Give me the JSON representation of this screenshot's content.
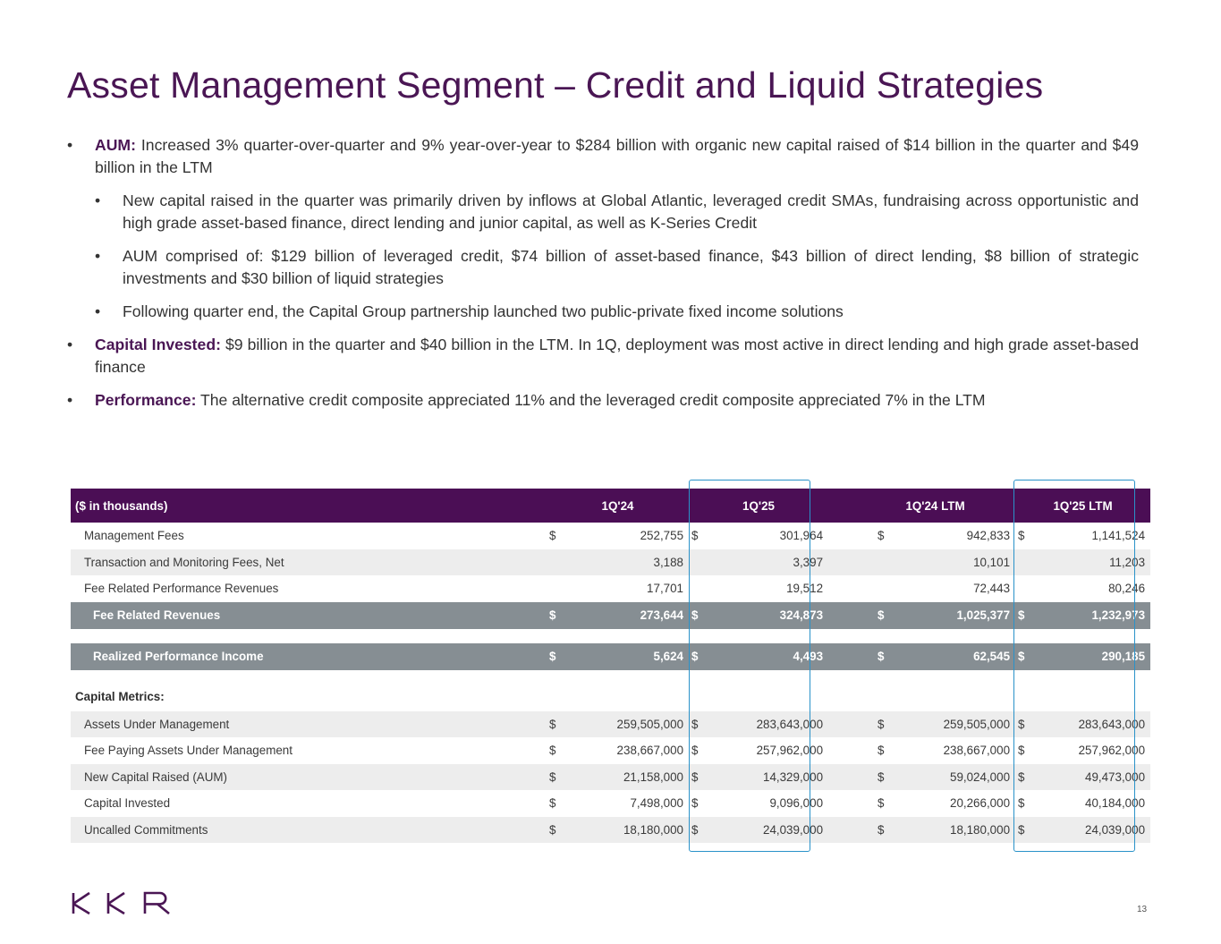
{
  "title": "Asset Management Segment – Credit and Liquid Strategies",
  "bullets": {
    "aum": {
      "lead": "AUM:",
      "text": " Increased 3% quarter-over-quarter and 9% year-over-year to $284 billion with organic new capital raised of $14 billion in the quarter and $49 billion in the LTM",
      "sub": [
        "New capital raised in the quarter was primarily driven by inflows at Global Atlantic, leveraged credit SMAs, fundraising across opportunistic and high grade asset-based finance, direct lending and junior capital, as well as K-Series Credit",
        "AUM comprised of: $129 billion of leveraged credit, $74 billion of asset-based finance, $43 billion of direct lending, $8 billion of strategic investments and $30 billion of liquid strategies",
        "Following quarter end, the Capital Group partnership launched two public-private fixed income solutions"
      ]
    },
    "capital": {
      "lead": "Capital Invested:",
      "text": " $9 billion in the quarter and $40 billion in the LTM. In 1Q, deployment was most active in direct lending and high grade asset-based finance"
    },
    "performance": {
      "lead": "Performance:",
      "text": " The alternative credit composite appreciated 11% and the leveraged credit composite appreciated 7% in the LTM"
    }
  },
  "table": {
    "unit_label": "($ in thousands)",
    "columns": [
      "1Q'24",
      "1Q'25",
      "1Q'24 LTM",
      "1Q'25 LTM"
    ],
    "currency": "$",
    "rows": [
      {
        "label": "Management Fees",
        "values": [
          "252,755",
          "301,964",
          "942,833",
          "1,141,524"
        ]
      },
      {
        "label": "Transaction and Monitoring Fees, Net",
        "values": [
          "3,188",
          "3,397",
          "10,101",
          "11,203"
        ]
      },
      {
        "label": "Fee Related Performance Revenues",
        "values": [
          "17,701",
          "19,512",
          "72,443",
          "80,246"
        ]
      }
    ],
    "fee_related_revenues": {
      "label": "Fee Related Revenues",
      "values": [
        "273,644",
        "324,873",
        "1,025,377",
        "1,232,973"
      ]
    },
    "realized_performance_income": {
      "label": "Realized Performance Income",
      "values": [
        "5,624",
        "4,493",
        "62,545",
        "290,185"
      ]
    },
    "capital_metrics_label": "Capital Metrics:",
    "capital_metrics": [
      {
        "label": "Assets Under Management",
        "values": [
          "259,505,000",
          "283,643,000",
          "259,505,000",
          "283,643,000"
        ]
      },
      {
        "label": "Fee Paying Assets Under Management",
        "values": [
          "238,667,000",
          "257,962,000",
          "238,667,000",
          "257,962,000"
        ]
      },
      {
        "label": "New Capital Raised (AUM)",
        "values": [
          "21,158,000",
          "14,329,000",
          "59,024,000",
          "49,473,000"
        ]
      },
      {
        "label": "Capital Invested",
        "values": [
          "7,498,000",
          "9,096,000",
          "20,266,000",
          "40,184,000"
        ]
      },
      {
        "label": "Uncalled Commitments",
        "values": [
          "18,180,000",
          "24,039,000",
          "18,180,000",
          "24,039,000"
        ]
      }
    ]
  },
  "logo_text": "KKR",
  "page_number": "13",
  "colors": {
    "brand": "#4a1654",
    "header": "#4b0e55",
    "total_row": "#868e93",
    "highlight": "#2a92c9"
  }
}
